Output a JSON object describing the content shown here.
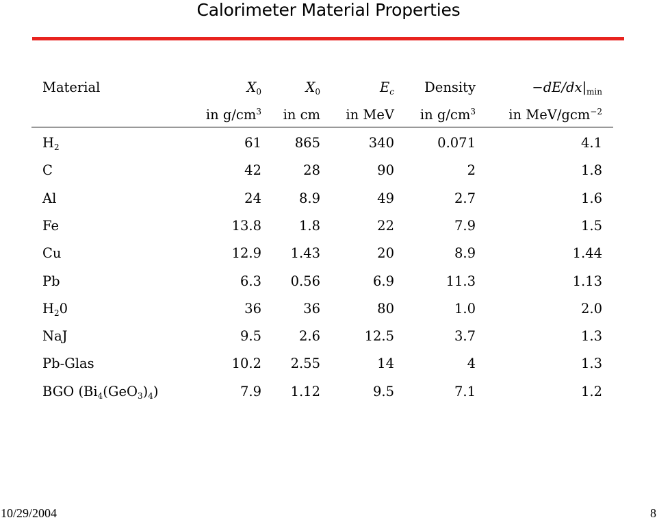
{
  "title": "Calorimeter Material Properties",
  "colors": {
    "accent_rule": "#e8231f"
  },
  "table": {
    "headers": {
      "material": "Material",
      "x0_mass": {
        "sym": "X",
        "sub": "0",
        "unit_pre": "in g/cm",
        "unit_sup": "3"
      },
      "x0_len": {
        "sym": "X",
        "sub": "0",
        "unit": "in cm"
      },
      "ec": {
        "sym": "E",
        "sub": "c",
        "unit": "in MeV"
      },
      "density": {
        "label": "Density",
        "unit_pre": "in g/cm",
        "unit_sup": "3"
      },
      "dedx": {
        "sym": "−dE/dx|",
        "sub": "min",
        "unit_pre": "in MeV/gcm",
        "unit_sup": "−2"
      }
    },
    "rows": [
      {
        "name": "H",
        "name_sub": "2",
        "name_post": "",
        "x0_mass": "61",
        "x0_len": "865",
        "ec": "340",
        "density": "0.071",
        "dedx": "4.1"
      },
      {
        "name": "C",
        "x0_mass": "42",
        "x0_len": "28",
        "ec": "90",
        "density": "2",
        "dedx": "1.8"
      },
      {
        "name": "Al",
        "x0_mass": "24",
        "x0_len": "8.9",
        "ec": "49",
        "density": "2.7",
        "dedx": "1.6"
      },
      {
        "name": "Fe",
        "x0_mass": "13.8",
        "x0_len": "1.8",
        "ec": "22",
        "density": "7.9",
        "dedx": "1.5"
      },
      {
        "name": "Cu",
        "x0_mass": "12.9",
        "x0_len": "1.43",
        "ec": "20",
        "density": "8.9",
        "dedx": "1.44"
      },
      {
        "name": "Pb",
        "x0_mass": "6.3",
        "x0_len": "0.56",
        "ec": "6.9",
        "density": "11.3",
        "dedx": "1.13"
      },
      {
        "name": "H",
        "name_sub": "2",
        "name_post": "0",
        "x0_mass": "36",
        "x0_len": "36",
        "ec": "80",
        "density": "1.0",
        "dedx": "2.0"
      },
      {
        "name": "NaJ",
        "x0_mass": "9.5",
        "x0_len": "2.6",
        "ec": "12.5",
        "density": "3.7",
        "dedx": "1.3"
      },
      {
        "name": "Pb-Glas",
        "x0_mass": "10.2",
        "x0_len": "2.55",
        "ec": "14",
        "density": "4",
        "dedx": "1.3"
      },
      {
        "name": "BGO (Bi",
        "name_sub": "4",
        "name_post": "(GeO",
        "name_sub2": "3",
        "name_post2": ")",
        "name_sub3": "4",
        "name_post3": ")",
        "x0_mass": "7.9",
        "x0_len": "1.12",
        "ec": "9.5",
        "density": "7.1",
        "dedx": "1.2"
      }
    ]
  },
  "footer": {
    "date": "10/29/2004",
    "page": "8"
  }
}
